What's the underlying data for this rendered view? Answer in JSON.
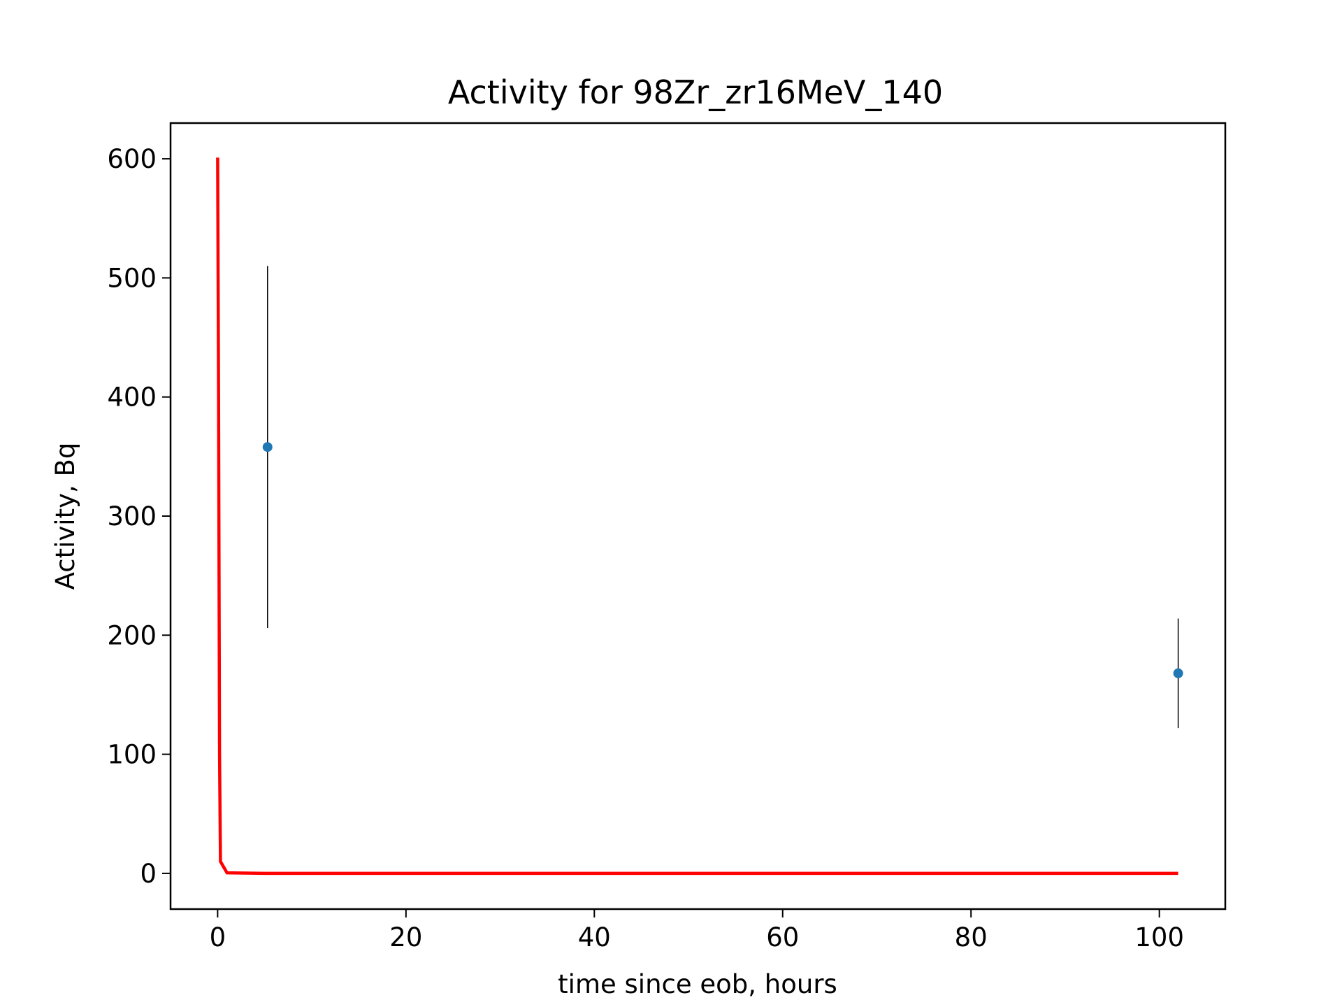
{
  "chart_data": {
    "type": "scatter",
    "title": "Activity for 98Zr_zr16MeV_140",
    "xlabel": "time since eob, hours",
    "ylabel": "Activity, Bq",
    "xlim": [
      -5,
      107
    ],
    "ylim": [
      -30,
      630
    ],
    "xticks": [
      0,
      20,
      40,
      60,
      80,
      100
    ],
    "yticks": [
      0,
      100,
      200,
      300,
      400,
      500,
      600
    ],
    "grid": false,
    "series": [
      {
        "kind": "line",
        "color": "#ff0000",
        "x": [
          0,
          0.1,
          0.2,
          0.3,
          1,
          5,
          20,
          50,
          102
        ],
        "y": [
          601,
          400,
          100,
          10,
          0.5,
          0,
          0,
          0,
          0
        ]
      },
      {
        "kind": "errorbar",
        "color": "#1f77b4",
        "errcolor": "#000000",
        "x": [
          5.3,
          102
        ],
        "y": [
          358,
          168
        ],
        "yerr": [
          152,
          46
        ]
      }
    ]
  }
}
